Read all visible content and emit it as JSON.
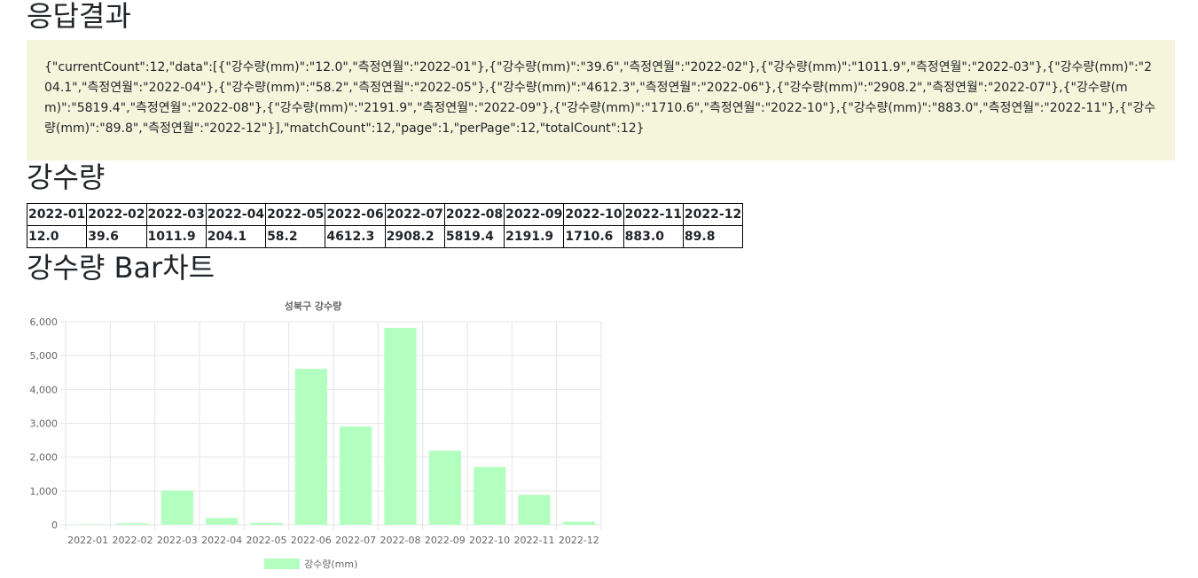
{
  "headings": {
    "response": "응답결과",
    "table": "강수량",
    "chart": "강수량 Bar차트"
  },
  "response_text": "{\"currentCount\":12,\"data\":[{\"강수량(mm)\":\"12.0\",\"측정연월\":\"2022-01\"},{\"강수량(mm)\":\"39.6\",\"측정연월\":\"2022-02\"},{\"강수량(mm)\":\"1011.9\",\"측정연월\":\"2022-03\"},{\"강수량(mm)\":\"204.1\",\"측정연월\":\"2022-04\"},{\"강수량(mm)\":\"58.2\",\"측정연월\":\"2022-05\"},{\"강수량(mm)\":\"4612.3\",\"측정연월\":\"2022-06\"},{\"강수량(mm)\":\"2908.2\",\"측정연월\":\"2022-07\"},{\"강수량(mm)\":\"5819.4\",\"측정연월\":\"2022-08\"},{\"강수량(mm)\":\"2191.9\",\"측정연월\":\"2022-09\"},{\"강수량(mm)\":\"1710.6\",\"측정연월\":\"2022-10\"},{\"강수량(mm)\":\"883.0\",\"측정연월\":\"2022-11\"},{\"강수량(mm)\":\"89.8\",\"측정연월\":\"2022-12\"}],\"matchCount\":12,\"page\":1,\"perPage\":12,\"totalCount\":12}",
  "table": {
    "months": [
      "2022-01",
      "2022-02",
      "2022-03",
      "2022-04",
      "2022-05",
      "2022-06",
      "2022-07",
      "2022-08",
      "2022-09",
      "2022-10",
      "2022-11",
      "2022-12"
    ],
    "values": [
      "12.0",
      "39.6",
      "1011.9",
      "204.1",
      "58.2",
      "4612.3",
      "2908.2",
      "5819.4",
      "2191.9",
      "1710.6",
      "883.0",
      "89.8"
    ]
  },
  "chart_data": {
    "type": "bar",
    "title": "성북구 강수량",
    "categories": [
      "2022-01",
      "2022-02",
      "2022-03",
      "2022-04",
      "2022-05",
      "2022-06",
      "2022-07",
      "2022-08",
      "2022-09",
      "2022-10",
      "2022-11",
      "2022-12"
    ],
    "series": [
      {
        "name": "강수량(mm)",
        "values": [
          12.0,
          39.6,
          1011.9,
          204.1,
          58.2,
          4612.3,
          2908.2,
          5819.4,
          2191.9,
          1710.6,
          883.0,
          89.8
        ],
        "color": "#b3ffc0"
      }
    ],
    "yticks": [
      "0",
      "1,000",
      "2,000",
      "3,000",
      "4,000",
      "5,000",
      "6,000"
    ],
    "ylim": [
      0,
      6000
    ],
    "grid": true,
    "legend": "bottom"
  },
  "colors": {
    "json_bg": "#f5f5dc",
    "bar_fill": "#b3ffc0",
    "grid": "#e5e5e5",
    "axis_text": "#666666"
  }
}
